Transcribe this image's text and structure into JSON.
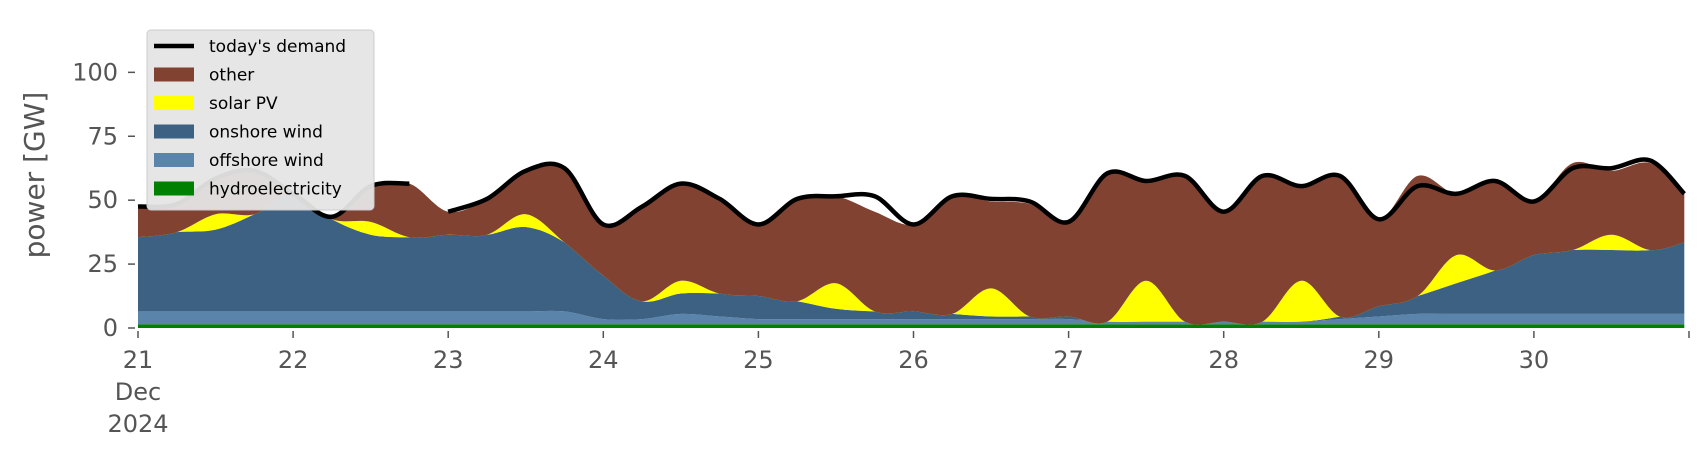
{
  "chart_data": {
    "type": "area",
    "stacked": true,
    "title": "",
    "xlabel": "",
    "ylabel": "power [GW]",
    "ylim": [
      0,
      115
    ],
    "xlim": [
      21,
      31
    ],
    "x_axis_type": "date",
    "x_tick_labels": [
      {
        "x": 21,
        "lines": [
          "21",
          "Dec",
          "2024"
        ]
      },
      {
        "x": 22,
        "lines": [
          "22"
        ]
      },
      {
        "x": 23,
        "lines": [
          "23"
        ]
      },
      {
        "x": 24,
        "lines": [
          "24"
        ]
      },
      {
        "x": 25,
        "lines": [
          "25"
        ]
      },
      {
        "x": 26,
        "lines": [
          "26"
        ]
      },
      {
        "x": 27,
        "lines": [
          "27"
        ]
      },
      {
        "x": 28,
        "lines": [
          "28"
        ]
      },
      {
        "x": 29,
        "lines": [
          "29"
        ]
      },
      {
        "x": 30,
        "lines": [
          "30"
        ]
      }
    ],
    "y_ticks": [
      0,
      25,
      50,
      75,
      100
    ],
    "grid": false,
    "legend_position": "upper-left",
    "x": [
      21.0,
      21.25,
      21.5,
      21.75,
      22.0,
      22.25,
      22.5,
      22.75,
      23.0,
      23.25,
      23.5,
      23.75,
      24.0,
      24.25,
      24.5,
      24.75,
      25.0,
      25.25,
      25.5,
      25.75,
      26.0,
      26.25,
      26.5,
      26.75,
      27.0,
      27.25,
      27.5,
      27.75,
      28.0,
      28.25,
      28.5,
      28.75,
      29.0,
      29.25,
      29.5,
      29.75,
      30.0,
      30.25,
      30.5,
      30.75,
      30.97
    ],
    "series": [
      {
        "name": "hydroelectricity",
        "color": "#008000",
        "values": [
          1.5,
          1.5,
          1.5,
          1.5,
          1.5,
          1.5,
          1.5,
          1.5,
          1.5,
          1.5,
          1.5,
          1.5,
          1.5,
          1.5,
          1.5,
          1.5,
          1.5,
          1.5,
          1.5,
          1.5,
          1.5,
          1.5,
          1.5,
          1.5,
          1.5,
          1.5,
          1.5,
          1.5,
          1.5,
          1.5,
          1.5,
          1.5,
          1.5,
          1.5,
          1.5,
          1.5,
          1.5,
          1.5,
          1.5,
          1.5,
          1.5
        ]
      },
      {
        "name": "offshore wind",
        "color": "#5b84ab",
        "values": [
          5,
          5,
          5,
          5,
          5,
          5,
          5,
          5,
          5,
          5,
          5,
          5,
          2,
          2,
          4,
          3,
          2,
          2,
          2,
          2,
          2,
          2,
          2,
          2,
          2,
          1,
          1,
          1,
          1,
          1,
          1,
          2,
          3,
          4,
          4,
          4,
          4,
          4,
          4,
          4,
          4
        ]
      },
      {
        "name": "onshore wind",
        "color": "#3c6183",
        "values": [
          29,
          31,
          32,
          38,
          46,
          36,
          30,
          29,
          30,
          30,
          33,
          27,
          17,
          7,
          8,
          9,
          9,
          7,
          4,
          3,
          3,
          2,
          1,
          1,
          1,
          0,
          0,
          0,
          0,
          0,
          0,
          1,
          4,
          7,
          12,
          17,
          23,
          25,
          25,
          25,
          28
        ]
      },
      {
        "name": "solar PV",
        "color": "#ffff00",
        "values": [
          0,
          0,
          6,
          0,
          0,
          0,
          5,
          0,
          0,
          0,
          5,
          0,
          0,
          0,
          5,
          0,
          0,
          0,
          10,
          0,
          0,
          0,
          11,
          0,
          0,
          0,
          16,
          0,
          0,
          0,
          16,
          0,
          0,
          0,
          11,
          0,
          0,
          0,
          6,
          0,
          0
        ]
      },
      {
        "name": "other",
        "color": "#814232",
        "values": [
          12,
          11,
          14,
          17,
          0,
          1,
          14,
          21,
          9,
          14,
          17,
          29,
          20,
          37,
          38,
          36,
          28,
          40,
          34,
          39,
          34,
          46,
          34,
          44,
          37,
          58,
          39,
          57,
          43,
          57,
          37,
          55,
          34,
          47,
          24,
          35,
          21,
          34,
          25,
          34,
          19
        ]
      }
    ],
    "demand": {
      "name": "today's demand",
      "color": "#000000",
      "values": [
        47.5,
        48.5,
        58.5,
        61.5,
        52.5,
        43.5,
        55.5,
        56.5,
        45.5,
        50.5,
        61.5,
        62.5,
        40.5,
        47.5,
        56.5,
        50.5,
        40.5,
        50.5,
        51.5,
        51.5,
        40.5,
        51.5,
        50.5,
        49.5,
        41.5,
        60.5,
        57.5,
        59.5,
        45.5,
        59.5,
        55.5,
        59.5,
        42.5,
        55.5,
        52.5,
        57.5,
        49.5,
        62.5,
        62.5,
        65.5,
        52.5
      ]
    },
    "demand_gap": [
      22.8,
      22.97
    ]
  }
}
